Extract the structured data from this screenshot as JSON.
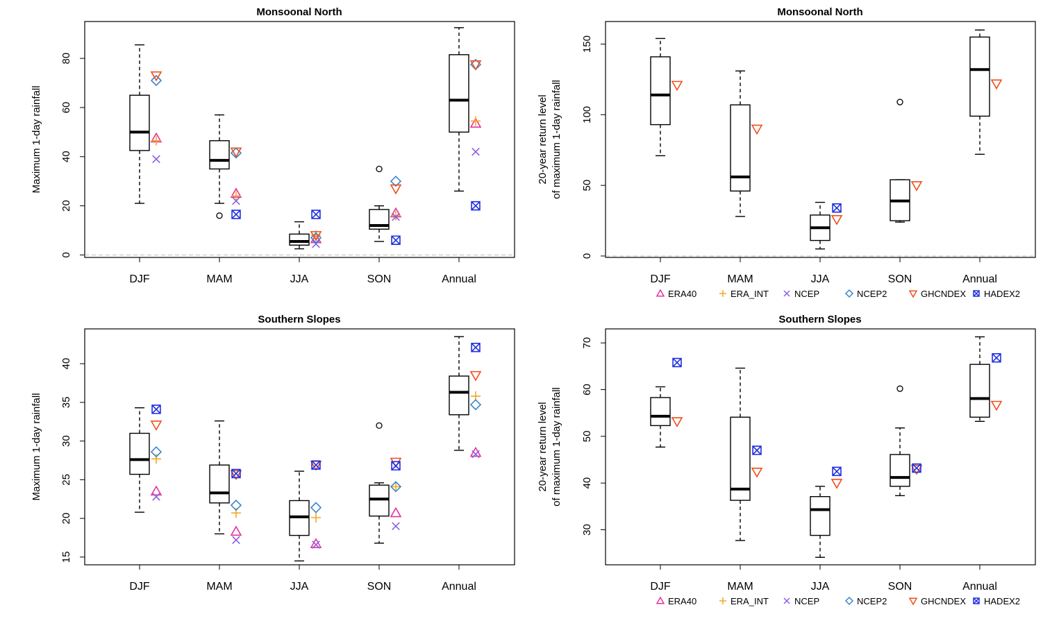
{
  "series_styles": {
    "ERA40": {
      "color": "#e6339a",
      "shape": "triangle"
    },
    "ERA_INT": {
      "color": "#f5a623",
      "shape": "plus"
    },
    "NCEP": {
      "color": "#8a5fe0",
      "shape": "cross"
    },
    "NCEP2": {
      "color": "#3a86c8",
      "shape": "diamond"
    },
    "GHCNDEX": {
      "color": "#f04e1a",
      "shape": "triangle-down"
    },
    "HADEX2": {
      "color": "#1f2fe0",
      "shape": "boxx"
    }
  },
  "legend": {
    "entries": [
      "ERA40",
      "ERA_INT",
      "NCEP",
      "NCEP2",
      "GHCNDEX",
      "HADEX2"
    ]
  },
  "chart_data": [
    {
      "type": "box",
      "title": "Monsoonal North",
      "ylabel": [
        "Maximum 1-day rainfall"
      ],
      "ylim": [
        -1,
        95
      ],
      "yticks": [
        0,
        20,
        40,
        60,
        80
      ],
      "zero_line": true,
      "categories": [
        "DJF",
        "MAM",
        "JJA",
        "SON",
        "Annual"
      ],
      "boxes": [
        {
          "whisker_low": 21,
          "q1": 42.5,
          "median": 50,
          "q3": 65,
          "whisker_high": 85.5,
          "outliers": []
        },
        {
          "whisker_low": 21,
          "q1": 35,
          "median": 38.5,
          "q3": 46.5,
          "whisker_high": 57,
          "outliers": [
            16
          ]
        },
        {
          "whisker_low": 2.5,
          "q1": 4,
          "median": 5.5,
          "q3": 8.5,
          "whisker_high": 13.5,
          "outliers": []
        },
        {
          "whisker_low": 5.5,
          "q1": 10.5,
          "median": 12,
          "q3": 18.5,
          "whisker_high": 20,
          "outliers": [
            35
          ]
        },
        {
          "whisker_low": 26,
          "q1": 50,
          "median": 63,
          "q3": 81.5,
          "whisker_high": 92.5,
          "outliers": []
        }
      ],
      "series": [
        {
          "name": "ERA40",
          "values": [
            47.5,
            25,
            6.5,
            17,
            53.5
          ]
        },
        {
          "name": "ERA_INT",
          "values": [
            46.5,
            24,
            8,
            16,
            54.5
          ]
        },
        {
          "name": "NCEP",
          "values": [
            39,
            22,
            4.5,
            15.5,
            42
          ]
        },
        {
          "name": "NCEP2",
          "values": [
            71,
            41.5,
            7,
            30,
            77.5
          ]
        },
        {
          "name": "GHCNDEX",
          "values": [
            73,
            42,
            8,
            27,
            77.5
          ]
        },
        {
          "name": "HADEX2",
          "values": [
            null,
            16.5,
            16.5,
            6,
            20
          ]
        }
      ]
    },
    {
      "type": "box",
      "title": "Monsoonal North",
      "ylabel": [
        "20-year return level",
        "of maximum 1-day rainfall"
      ],
      "ylim": [
        -1,
        166
      ],
      "yticks": [
        0,
        50,
        100,
        150
      ],
      "zero_line": true,
      "categories": [
        "DJF",
        "MAM",
        "JJA",
        "SON",
        "Annual"
      ],
      "boxes": [
        {
          "whisker_low": 71,
          "q1": 93,
          "median": 114,
          "q3": 141,
          "whisker_high": 154,
          "outliers": []
        },
        {
          "whisker_low": 28,
          "q1": 46,
          "median": 56,
          "q3": 107,
          "whisker_high": 131,
          "outliers": []
        },
        {
          "whisker_low": 5,
          "q1": 11,
          "median": 20,
          "q3": 29,
          "whisker_high": 38,
          "outliers": []
        },
        {
          "whisker_low": 24,
          "q1": 25,
          "median": 39,
          "q3": 54,
          "whisker_high": 54,
          "outliers": [
            109
          ]
        },
        {
          "whisker_low": 72,
          "q1": 99,
          "median": 132,
          "q3": 155,
          "whisker_high": 160,
          "outliers": []
        }
      ],
      "series": [
        {
          "name": "GHCNDEX",
          "values": [
            121,
            90,
            26,
            50,
            122
          ]
        },
        {
          "name": "HADEX2",
          "values": [
            null,
            null,
            34,
            null,
            null
          ]
        }
      ]
    },
    {
      "type": "box",
      "title": "Southern Slopes",
      "ylabel": [
        "Maximum 1-day rainfall"
      ],
      "ylim": [
        14,
        44.5
      ],
      "yticks": [
        15,
        20,
        25,
        30,
        35,
        40
      ],
      "zero_line": false,
      "categories": [
        "DJF",
        "MAM",
        "JJA",
        "SON",
        "Annual"
      ],
      "boxes": [
        {
          "whisker_low": 20.8,
          "q1": 25.7,
          "median": 27.6,
          "q3": 31,
          "whisker_high": 34.3,
          "outliers": []
        },
        {
          "whisker_low": 18,
          "q1": 22,
          "median": 23.3,
          "q3": 26.9,
          "whisker_high": 32.6,
          "outliers": []
        },
        {
          "whisker_low": 14.5,
          "q1": 17.8,
          "median": 20.2,
          "q3": 22.3,
          "whisker_high": 26.1,
          "outliers": []
        },
        {
          "whisker_low": 16.8,
          "q1": 20.3,
          "median": 22.5,
          "q3": 24.3,
          "whisker_high": 24.6,
          "outliers": [
            32
          ]
        },
        {
          "whisker_low": 28.8,
          "q1": 33.4,
          "median": 36.3,
          "q3": 38.4,
          "whisker_high": 43.5,
          "outliers": []
        }
      ],
      "series": [
        {
          "name": "ERA40",
          "values": [
            23.5,
            18.3,
            16.7,
            20.7,
            28.5
          ]
        },
        {
          "name": "ERA_INT",
          "values": [
            27.7,
            20.7,
            20.1,
            24.1,
            35.8
          ]
        },
        {
          "name": "NCEP",
          "values": [
            22.8,
            17.2,
            16.6,
            19,
            28.3
          ]
        },
        {
          "name": "NCEP2",
          "values": [
            28.6,
            21.7,
            21.4,
            24.1,
            34.7
          ]
        },
        {
          "name": "GHCNDEX",
          "values": [
            32.1,
            25.7,
            26.9,
            27.3,
            38.5
          ]
        },
        {
          "name": "HADEX2",
          "values": [
            34.1,
            25.8,
            26.9,
            26.8,
            42.1
          ]
        }
      ]
    },
    {
      "type": "box",
      "title": "Southern Slopes",
      "ylabel": [
        "20-year return level",
        "of maximum 1-day rainfall"
      ],
      "ylim": [
        22.5,
        73
      ],
      "yticks": [
        30,
        40,
        50,
        60,
        70
      ],
      "zero_line": false,
      "categories": [
        "DJF",
        "MAM",
        "JJA",
        "SON",
        "Annual"
      ],
      "boxes": [
        {
          "whisker_low": 47.7,
          "q1": 52.3,
          "median": 54.3,
          "q3": 58.3,
          "whisker_high": 60.6,
          "outliers": []
        },
        {
          "whisker_low": 27.7,
          "q1": 36.3,
          "median": 38.7,
          "q3": 54.1,
          "whisker_high": 64.6,
          "outliers": []
        },
        {
          "whisker_low": 24.1,
          "q1": 28.8,
          "median": 34.3,
          "q3": 37.1,
          "whisker_high": 39.3,
          "outliers": []
        },
        {
          "whisker_low": 37.3,
          "q1": 39.3,
          "median": 41.2,
          "q3": 46.1,
          "whisker_high": 51.8,
          "outliers": [
            60.2
          ]
        },
        {
          "whisker_low": 53.2,
          "q1": 54.1,
          "median": 58.1,
          "q3": 65.4,
          "whisker_high": 71.3,
          "outliers": []
        }
      ],
      "series": [
        {
          "name": "GHCNDEX",
          "values": [
            53.2,
            42.4,
            40,
            43,
            56.7
          ]
        },
        {
          "name": "HADEX2",
          "values": [
            65.8,
            47,
            42.5,
            43.2,
            66.8
          ]
        }
      ]
    }
  ]
}
